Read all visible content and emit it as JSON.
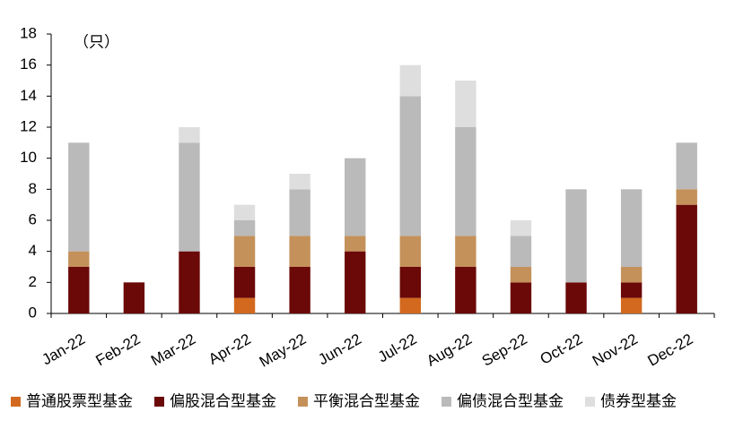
{
  "chart_data": {
    "type": "stacked_bar",
    "unit_label": "（只）",
    "categories": [
      "Jan-22",
      "Feb-22",
      "Mar-22",
      "Apr-22",
      "May-22",
      "Jun-22",
      "Jul-22",
      "Aug-22",
      "Sep-22",
      "Oct-22",
      "Nov-22",
      "Dec-22"
    ],
    "series": [
      {
        "name": "普通股票型基金",
        "color": "#d2691e",
        "values": [
          0,
          0,
          0,
          1,
          0,
          0,
          1,
          0,
          0,
          0,
          1,
          0
        ]
      },
      {
        "name": "偏股混合型基金",
        "color": "#6b0808",
        "values": [
          3,
          2,
          4,
          2,
          3,
          4,
          2,
          3,
          2,
          2,
          1,
          7
        ]
      },
      {
        "name": "平衡混合型基金",
        "color": "#c4915a",
        "values": [
          1,
          0,
          0,
          2,
          2,
          1,
          2,
          2,
          1,
          0,
          1,
          1
        ]
      },
      {
        "name": "偏债混合型基金",
        "color": "#bababa",
        "values": [
          7,
          0,
          7,
          1,
          3,
          5,
          9,
          7,
          2,
          6,
          5,
          3
        ]
      },
      {
        "name": "债券型基金",
        "color": "#dedede",
        "values": [
          0,
          0,
          1,
          1,
          1,
          0,
          2,
          3,
          1,
          0,
          0,
          0
        ]
      }
    ],
    "ylim": [
      0,
      18
    ],
    "yticks": [
      0,
      2,
      4,
      6,
      8,
      10,
      12,
      14,
      16,
      18
    ],
    "grid": false,
    "legend": "bottom"
  }
}
